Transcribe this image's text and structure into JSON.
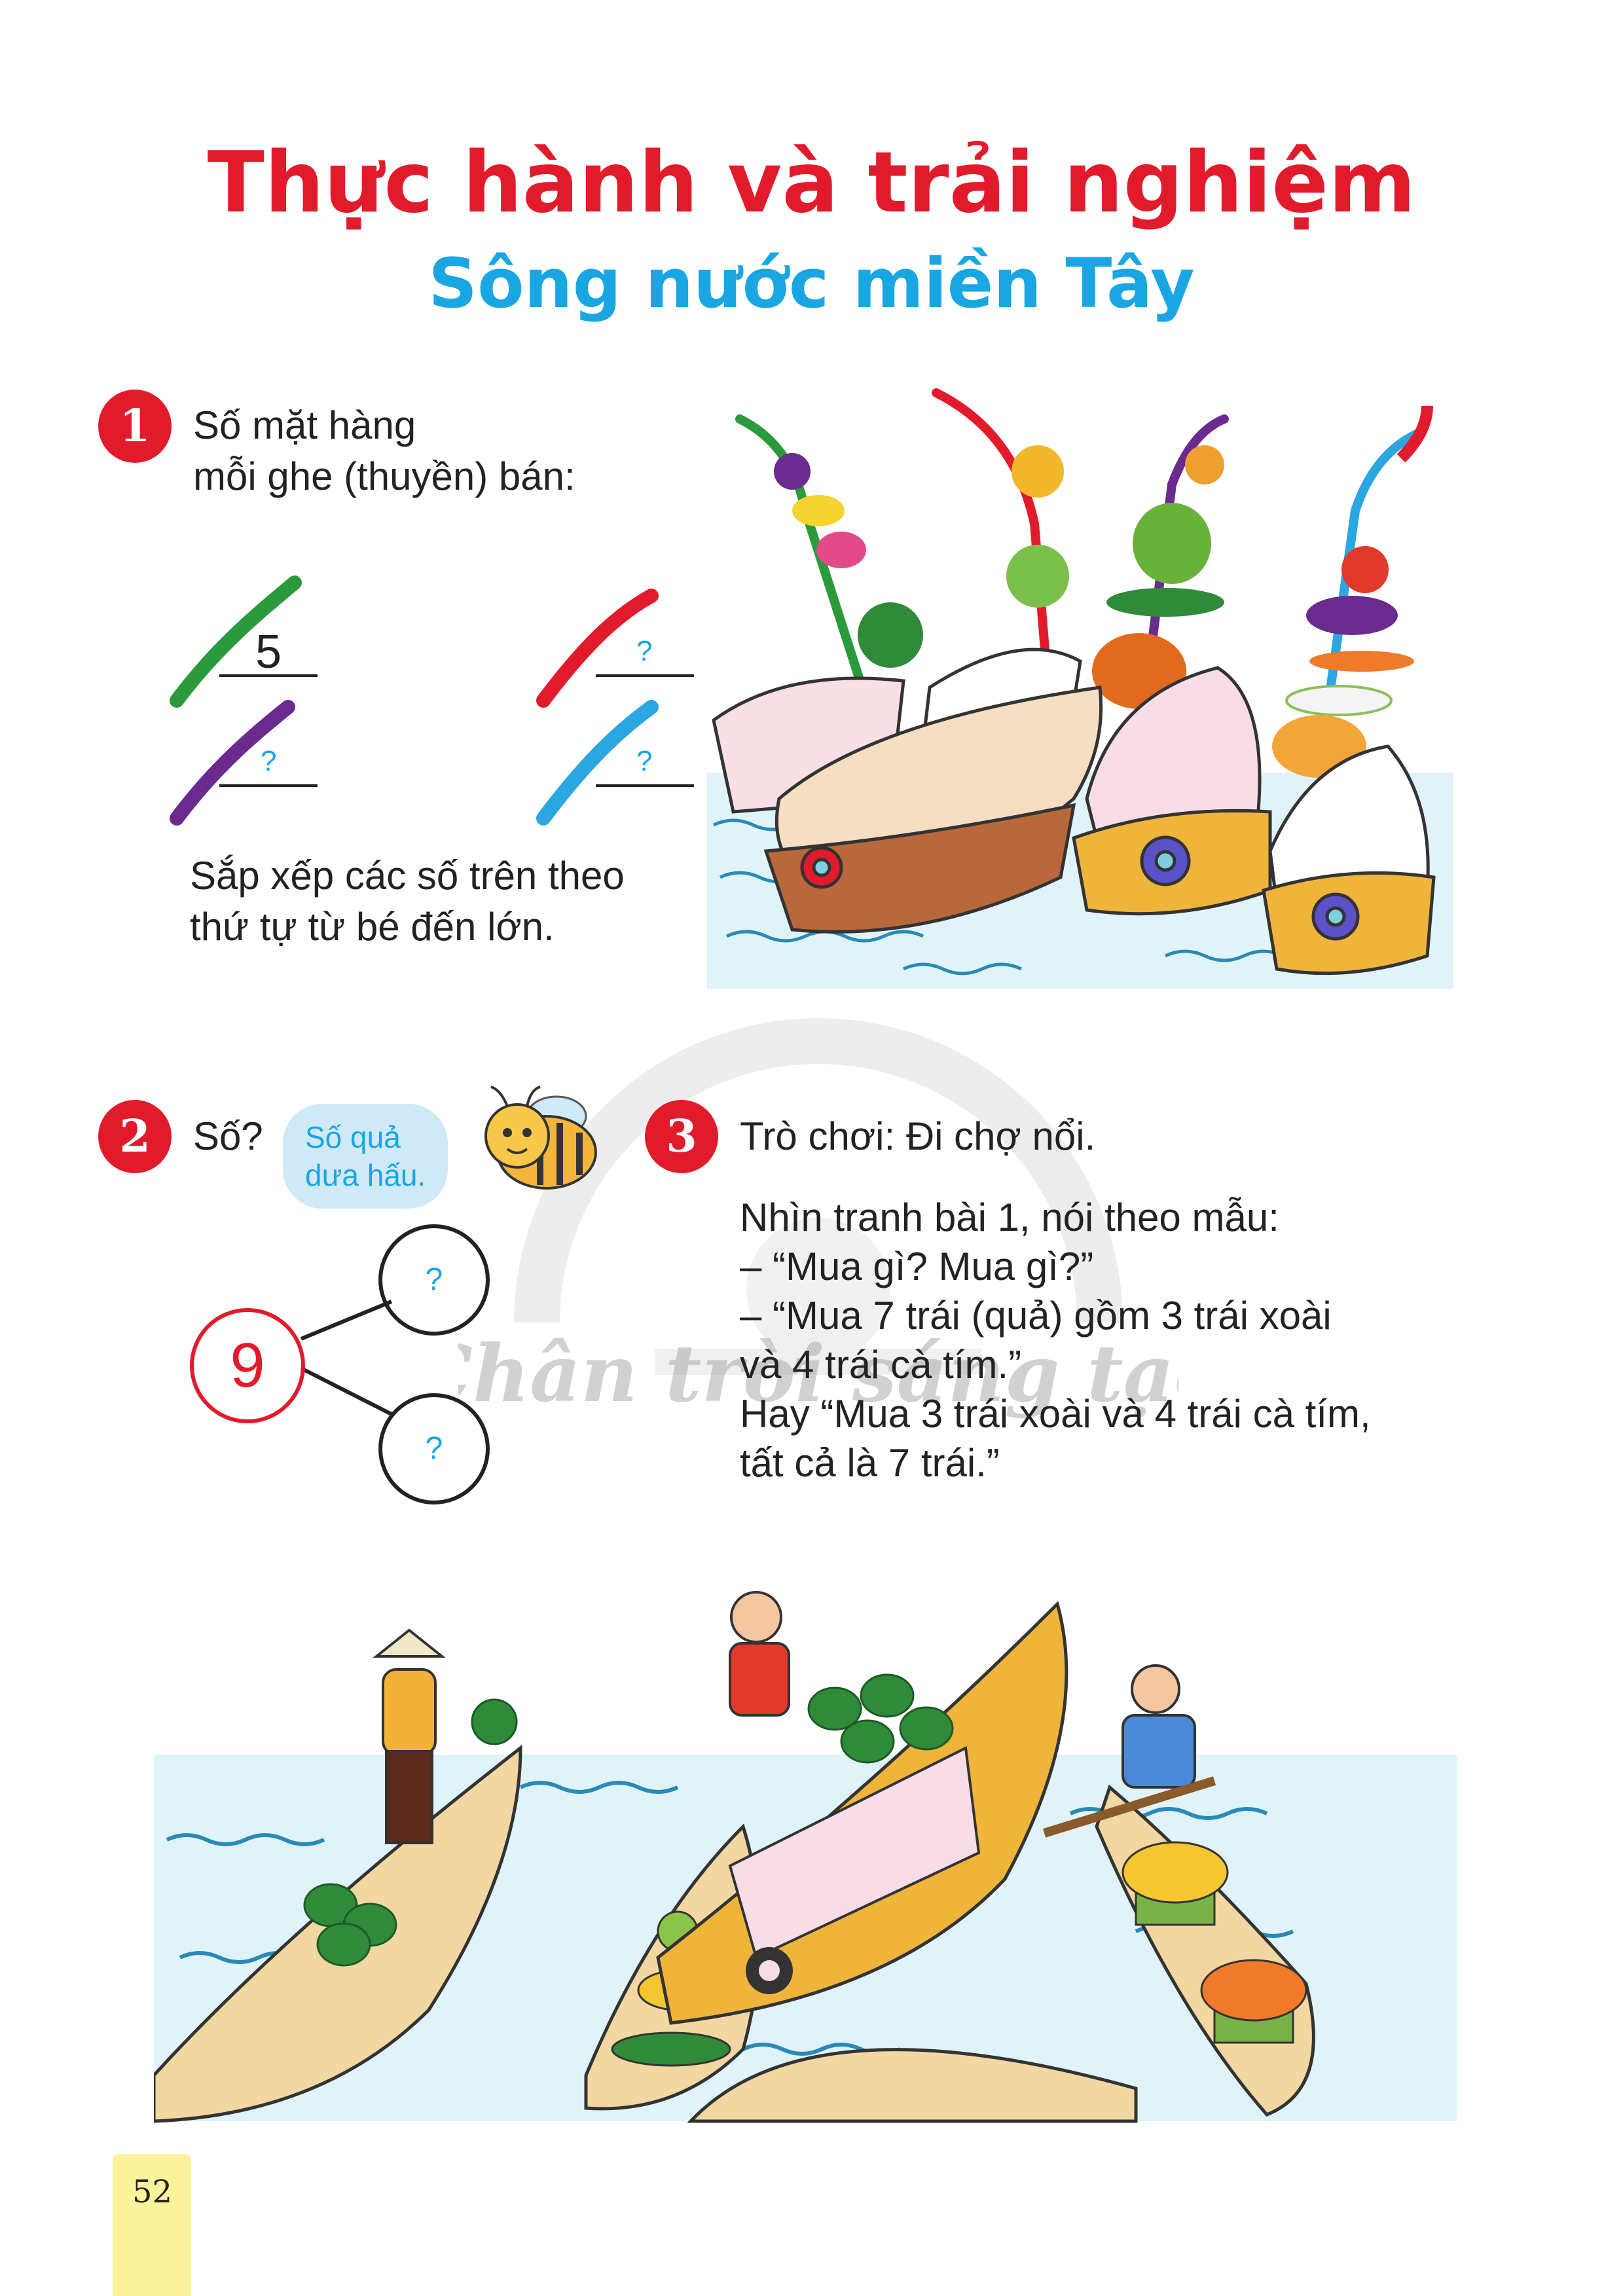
{
  "header": {
    "title": "Thực hành và trải nghiệm",
    "subtitle": "Sông nước miền Tây"
  },
  "exercise1": {
    "number": "1",
    "prompt_line1": "Số mặt hàng",
    "prompt_line2": "mỗi ghe (thuyền) bán:",
    "given_value": "5",
    "unknown_mark": "?",
    "instruction_line1": "Sắp xếp các số trên theo",
    "instruction_line2": "thứ tự từ bé đến lớn."
  },
  "exercise2": {
    "number": "2",
    "prompt": "Số?",
    "bubble_line1": "Số quả",
    "bubble_line2": "dưa hấu.",
    "total": "9",
    "part_top": "?",
    "part_bottom": "?"
  },
  "exercise3": {
    "number": "3",
    "title": "Trò chơi: Đi chợ nổi.",
    "line1": "Nhìn tranh bài 1, nói theo mẫu:",
    "line2": "– “Mua gì? Mua gì?”",
    "line3": "– “Mua 7 trái (quả) gồm 3 trái xoài",
    "line4": "và 4 trái cà tím.”",
    "line5": "Hay “Mua 3 trái xoài và 4 trái cà tím,",
    "line6": "tất cả là 7 trái.”"
  },
  "watermark": "Chân trời sáng tạo",
  "footer": {
    "page_number": "52"
  },
  "colors": {
    "title_red": "#e21b2c",
    "subtitle_blue": "#19a6e3",
    "stroke_green": "#2a9a3c",
    "stroke_red": "#e21b2c",
    "stroke_purple": "#6a2a8e",
    "stroke_blue": "#2aa6e0",
    "page_tab": "#fbf39a"
  }
}
